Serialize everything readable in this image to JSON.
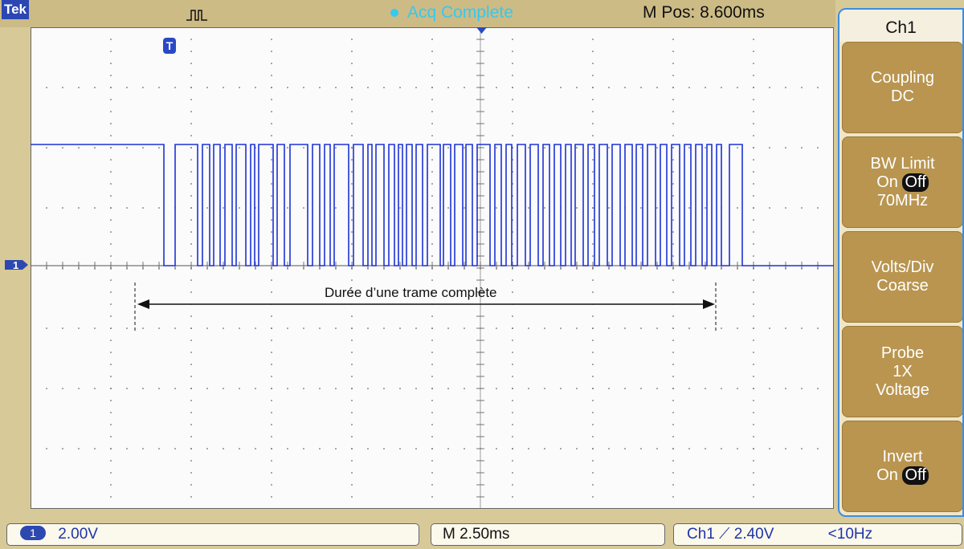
{
  "header": {
    "brand": "Tek",
    "acquisition_status": "Acq Complete",
    "position": "M Pos: 8.600ms"
  },
  "overlay": {
    "trigger_marker": "T",
    "channel_marker": "1",
    "caption": "Durée d’une trame complète"
  },
  "side_menu": {
    "title": "Ch1",
    "buttons": [
      {
        "line1": "Coupling",
        "line2": "DC"
      },
      {
        "line1": "BW Limit",
        "on": "On",
        "off": "Off",
        "line3": "70MHz"
      },
      {
        "line1": "Volts/Div",
        "line2": "Coarse"
      },
      {
        "line1": "Probe",
        "line2": "1X",
        "line3": "Voltage"
      },
      {
        "line1": "Invert",
        "on": "On",
        "off": "Off"
      }
    ]
  },
  "status_bar": {
    "channel": "1",
    "volts_per_div": "2.00V",
    "time_per_div": "M 2.50ms",
    "trigger": "Ch1 ⟋ 2.40V",
    "frequency": "<10Hz"
  },
  "colors": {
    "trace": "#1d32d6",
    "accent_cyan": "#37c8ee",
    "menu_button": "#b99550"
  }
}
